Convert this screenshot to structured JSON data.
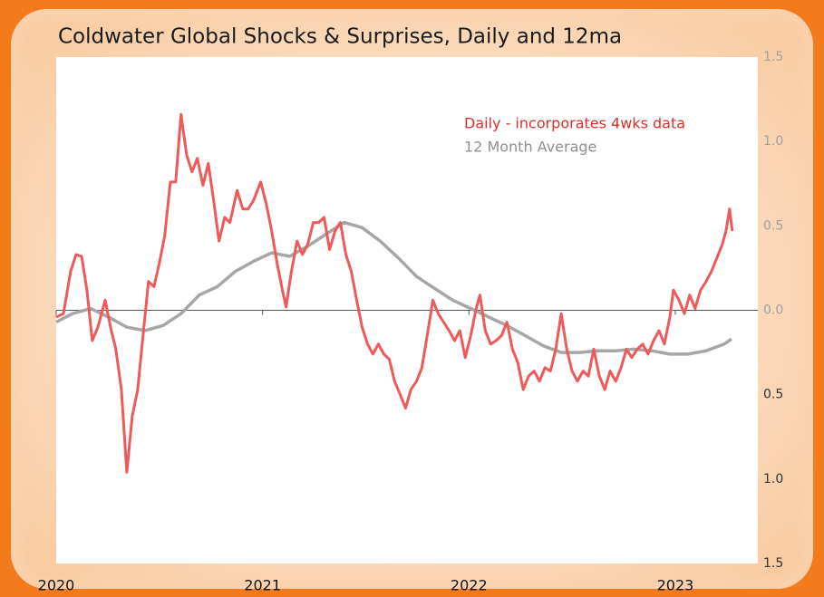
{
  "chart_data": {
    "type": "line",
    "title": "Coldwater Global Shocks & Surprises, Daily and 12ma",
    "xlim": [
      2020,
      2023.4
    ],
    "xticks": [
      2020,
      2021,
      2022,
      2023
    ],
    "ylim": [
      -1.5,
      1.5
    ],
    "yticks": [
      {
        "value": -1.5,
        "label": "1.5"
      },
      {
        "value": -1,
        "label": "1.0"
      },
      {
        "value": -0.5,
        "label": "0.5"
      },
      {
        "value": 0,
        "label": "0.0"
      },
      0.5,
      {
        "value": 1,
        "label": "1.0"
      },
      1.5
    ],
    "legend": "upper right",
    "series": [
      {
        "name": "Daily - incorporates  4wks data",
        "color": "#ee5a5a",
        "x": [
          2020.0,
          2020.035,
          2020.07,
          2020.096,
          2020.123,
          2020.149,
          2020.175,
          2020.202,
          2020.237,
          2020.263,
          2020.289,
          2020.316,
          2020.342,
          2020.368,
          2020.395,
          2020.421,
          2020.447,
          2020.474,
          2020.5,
          2020.526,
          2020.553,
          2020.579,
          2020.605,
          2020.632,
          2020.658,
          2020.684,
          2020.711,
          2020.737,
          2020.763,
          2020.789,
          2020.816,
          2020.842,
          2020.877,
          2020.904,
          2020.93,
          2020.956,
          2020.991,
          2021.018,
          2021.044,
          2021.07,
          2021.096,
          2021.114,
          2021.14,
          2021.167,
          2021.193,
          2021.219,
          2021.246,
          2021.272,
          2021.298,
          2021.325,
          2021.351,
          2021.377,
          2021.404,
          2021.43,
          2021.456,
          2021.482,
          2021.509,
          2021.535,
          2021.561,
          2021.588,
          2021.614,
          2021.64,
          2021.667,
          2021.693,
          2021.719,
          2021.746,
          2021.772,
          2021.798,
          2021.825,
          2021.851,
          2021.877,
          2021.904,
          2021.93,
          2021.956,
          2021.982,
          2022.009,
          2022.035,
          2022.053,
          2022.079,
          2022.105,
          2022.132,
          2022.158,
          2022.184,
          2022.211,
          2022.237,
          2022.263,
          2022.289,
          2022.316,
          2022.342,
          2022.368,
          2022.395,
          2022.421,
          2022.447,
          2022.474,
          2022.5,
          2022.526,
          2022.553,
          2022.579,
          2022.605,
          2022.632,
          2022.658,
          2022.684,
          2022.711,
          2022.737,
          2022.763,
          2022.789,
          2022.816,
          2022.842,
          2022.868,
          2022.895,
          2022.921,
          2022.947,
          2022.974,
          2022.991,
          2023.018,
          2023.044,
          2023.07,
          2023.096,
          2023.123,
          2023.149,
          2023.175,
          2023.202,
          2023.228,
          2023.246,
          2023.263,
          2023.276
        ],
        "values": [
          -0.04,
          -0.02,
          0.23,
          0.33,
          0.32,
          0.12,
          -0.18,
          -0.1,
          0.06,
          -0.1,
          -0.23,
          -0.47,
          -0.96,
          -0.63,
          -0.47,
          -0.15,
          0.17,
          0.14,
          0.28,
          0.44,
          0.76,
          0.76,
          1.16,
          0.92,
          0.82,
          0.9,
          0.74,
          0.87,
          0.65,
          0.41,
          0.55,
          0.52,
          0.71,
          0.6,
          0.6,
          0.65,
          0.76,
          0.63,
          0.47,
          0.28,
          0.12,
          0.02,
          0.23,
          0.41,
          0.33,
          0.39,
          0.52,
          0.52,
          0.55,
          0.36,
          0.47,
          0.52,
          0.33,
          0.23,
          0.06,
          -0.1,
          -0.2,
          -0.26,
          -0.2,
          -0.26,
          -0.29,
          -0.42,
          -0.5,
          -0.58,
          -0.47,
          -0.42,
          -0.34,
          -0.15,
          0.06,
          -0.02,
          -0.07,
          -0.12,
          -0.18,
          -0.12,
          -0.28,
          -0.15,
          0.01,
          0.09,
          -0.12,
          -0.2,
          -0.18,
          -0.15,
          -0.07,
          -0.23,
          -0.31,
          -0.47,
          -0.39,
          -0.36,
          -0.42,
          -0.34,
          -0.36,
          -0.23,
          -0.02,
          -0.23,
          -0.36,
          -0.42,
          -0.36,
          -0.39,
          -0.23,
          -0.39,
          -0.47,
          -0.36,
          -0.42,
          -0.34,
          -0.23,
          -0.28,
          -0.23,
          -0.2,
          -0.26,
          -0.18,
          -0.12,
          -0.2,
          -0.04,
          0.12,
          0.06,
          -0.02,
          0.09,
          0.01,
          0.12,
          0.17,
          0.23,
          0.31,
          0.39,
          0.47,
          0.6,
          0.47
        ]
      },
      {
        "name": "12 Month Average",
        "color": "#a6a6a6",
        "x": [
          2020.0,
          2020.079,
          2020.167,
          2020.254,
          2020.342,
          2020.43,
          2020.518,
          2020.605,
          2020.693,
          2020.781,
          2020.868,
          2020.956,
          2021.044,
          2021.132,
          2021.219,
          2021.307,
          2021.395,
          2021.482,
          2021.57,
          2021.658,
          2021.746,
          2021.833,
          2021.921,
          2022.009,
          2022.096,
          2022.184,
          2022.272,
          2022.36,
          2022.447,
          2022.535,
          2022.623,
          2022.711,
          2022.798,
          2022.886,
          2022.974,
          2023.061,
          2023.149,
          2023.237,
          2023.272
        ],
        "values": [
          -0.07,
          -0.02,
          0.01,
          -0.04,
          -0.1,
          -0.12,
          -0.09,
          -0.02,
          0.09,
          0.14,
          0.23,
          0.29,
          0.34,
          0.32,
          0.38,
          0.45,
          0.52,
          0.49,
          0.41,
          0.31,
          0.2,
          0.13,
          0.06,
          0.01,
          -0.04,
          -0.09,
          -0.15,
          -0.21,
          -0.25,
          -0.25,
          -0.24,
          -0.24,
          -0.23,
          -0.24,
          -0.26,
          -0.26,
          -0.24,
          -0.2,
          -0.17
        ]
      }
    ]
  }
}
